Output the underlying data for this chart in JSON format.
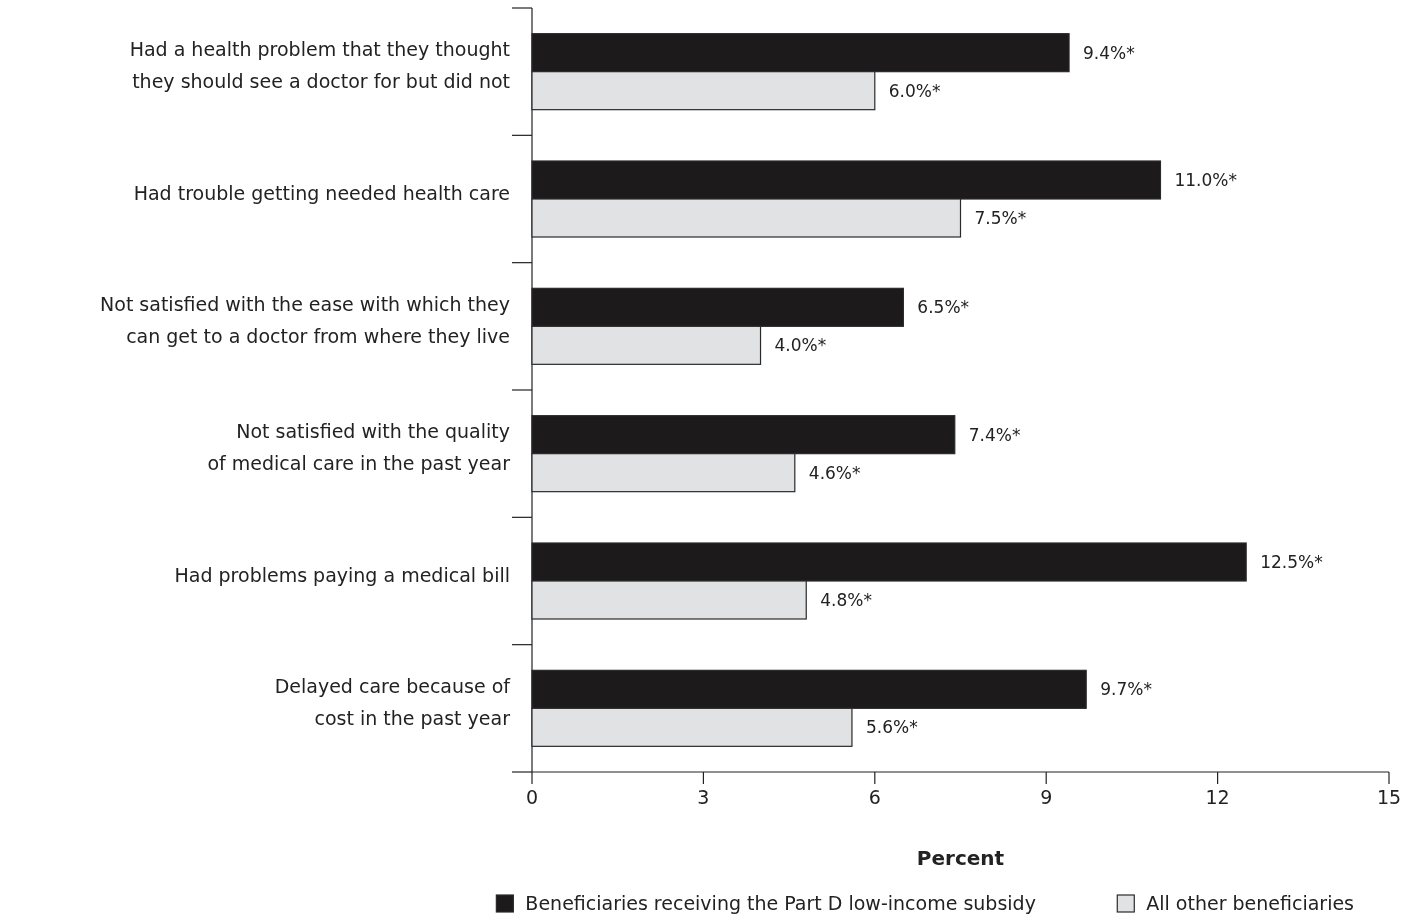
{
  "chart_data": {
    "type": "bar",
    "orientation": "horizontal",
    "xlabel": "Percent",
    "categories": [
      "Had a health problem that they thought they should see a doctor for but did not",
      "Had trouble getting needed health care",
      "Not satisfied with the ease with which they can get to a doctor from where they live",
      "Not satisfied with the quality of medical care in the past year",
      "Had problems paying a medical bill",
      "Delayed care because of cost in the past year"
    ],
    "series": [
      {
        "name": "Beneficiaries receiving the Part D low-income subsidy",
        "color": "#1c1a1b",
        "values": [
          9.4,
          11.0,
          6.5,
          7.4,
          12.5,
          9.7
        ],
        "value_labels": [
          "9.4%*",
          "11.0%*",
          "6.5%*",
          "7.4%*",
          "12.5%*",
          "9.7%*"
        ]
      },
      {
        "name": "All other beneficiaries",
        "color": "#e1e2e4",
        "values": [
          6.0,
          7.5,
          4.0,
          4.6,
          4.8,
          5.6
        ],
        "value_labels": [
          "6.0%*",
          "7.5%*",
          "4.0%*",
          "4.6%*",
          "4.8%*",
          "5.6%*"
        ]
      }
    ],
    "xlim": [
      0,
      15
    ],
    "xticks": [
      0,
      3,
      6,
      9,
      12,
      15
    ],
    "legend": "bottom right"
  }
}
